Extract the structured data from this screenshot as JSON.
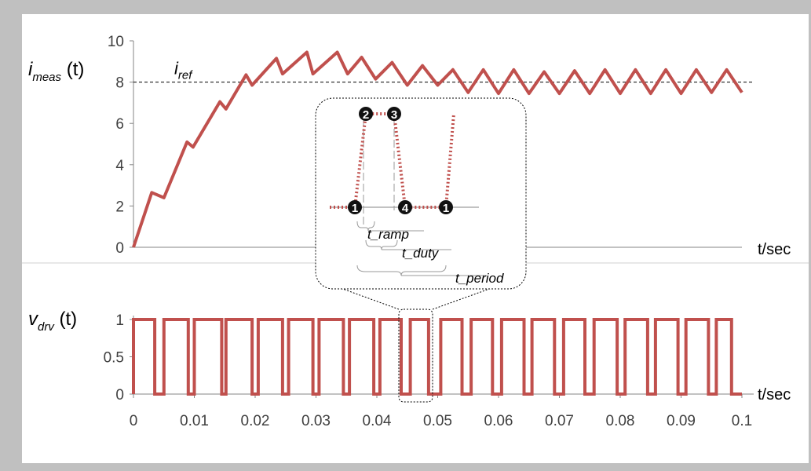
{
  "colors": {
    "background": "#ffffff",
    "frame": "#c0c0c0",
    "signal": "#c0504d",
    "axis": "#868686",
    "text": "#000000"
  },
  "chart_data": [
    {
      "type": "line",
      "id": "current",
      "ylabel_main": "i",
      "ylabel_sub": "meas",
      "ylabel_suffix": " (t)",
      "xlabel": "t/sec",
      "ylim": [
        0,
        10
      ],
      "yticks": [
        "0",
        "2",
        "4",
        "6",
        "8",
        "10"
      ],
      "xlim": [
        0,
        0.1
      ],
      "ref": {
        "label_main": "i",
        "label_sub": "ref",
        "value": 8,
        "style": "dashed"
      },
      "series": [
        {
          "x": [
            0,
            0.003,
            0.005,
            0.0088,
            0.0098,
            0.0142,
            0.0152,
            0.0185,
            0.0195,
            0.0235,
            0.0245,
            0.0285,
            0.0295,
            0.0335,
            0.0352,
            0.0375,
            0.0398,
            0.0425,
            0.045,
            0.0475,
            0.05,
            0.0525,
            0.055,
            0.0575,
            0.06,
            0.0625,
            0.065,
            0.0675,
            0.07,
            0.0725,
            0.075,
            0.0775,
            0.08,
            0.0825,
            0.085,
            0.0875,
            0.09,
            0.0925,
            0.095,
            0.0975,
            0.1
          ],
          "y": [
            0,
            2.65,
            2.4,
            5.1,
            4.85,
            7.05,
            6.7,
            8.35,
            7.85,
            9.15,
            8.4,
            9.45,
            8.4,
            9.45,
            8.4,
            9.2,
            8.15,
            8.95,
            7.85,
            8.8,
            7.85,
            8.6,
            7.5,
            8.6,
            7.45,
            8.6,
            7.45,
            8.5,
            7.45,
            8.55,
            7.45,
            8.6,
            7.45,
            8.6,
            7.45,
            8.6,
            7.45,
            8.6,
            7.5,
            8.6,
            7.5
          ]
        }
      ]
    },
    {
      "type": "line",
      "id": "drive",
      "ylabel_main": "v",
      "ylabel_sub": "drv",
      "ylabel_suffix": " (t)",
      "xlabel": "t/sec",
      "ylim": [
        0,
        1
      ],
      "yticks": [
        "0",
        "0.5",
        "1"
      ],
      "xlim": [
        0,
        0.1
      ],
      "xticks": [
        "0",
        "0.01",
        "0.02",
        "0.03",
        "0.04",
        "0.05",
        "0.06",
        "0.07",
        "0.08",
        "0.09",
        "0.1"
      ],
      "pulses": [
        [
          0,
          0.0035
        ],
        [
          0.005,
          0.009
        ],
        [
          0.01,
          0.0145
        ],
        [
          0.0152,
          0.0195
        ],
        [
          0.0205,
          0.0245
        ],
        [
          0.0255,
          0.0295
        ],
        [
          0.0305,
          0.0345
        ],
        [
          0.0355,
          0.0395
        ],
        [
          0.0405,
          0.044
        ],
        [
          0.0455,
          0.0485
        ],
        [
          0.0505,
          0.054
        ],
        [
          0.0555,
          0.059
        ],
        [
          0.0605,
          0.0642
        ],
        [
          0.0655,
          0.0692
        ],
        [
          0.0707,
          0.0742
        ],
        [
          0.0757,
          0.0795
        ],
        [
          0.0808,
          0.0845
        ],
        [
          0.0858,
          0.0895
        ],
        [
          0.0908,
          0.0945
        ],
        [
          0.0958,
          0.0983
        ]
      ]
    }
  ],
  "inset": {
    "markers": [
      "1",
      "2",
      "3",
      "4",
      "1"
    ],
    "labels": {
      "ramp": "t_ramp",
      "duty": "t_duty",
      "period": "t_period"
    }
  }
}
